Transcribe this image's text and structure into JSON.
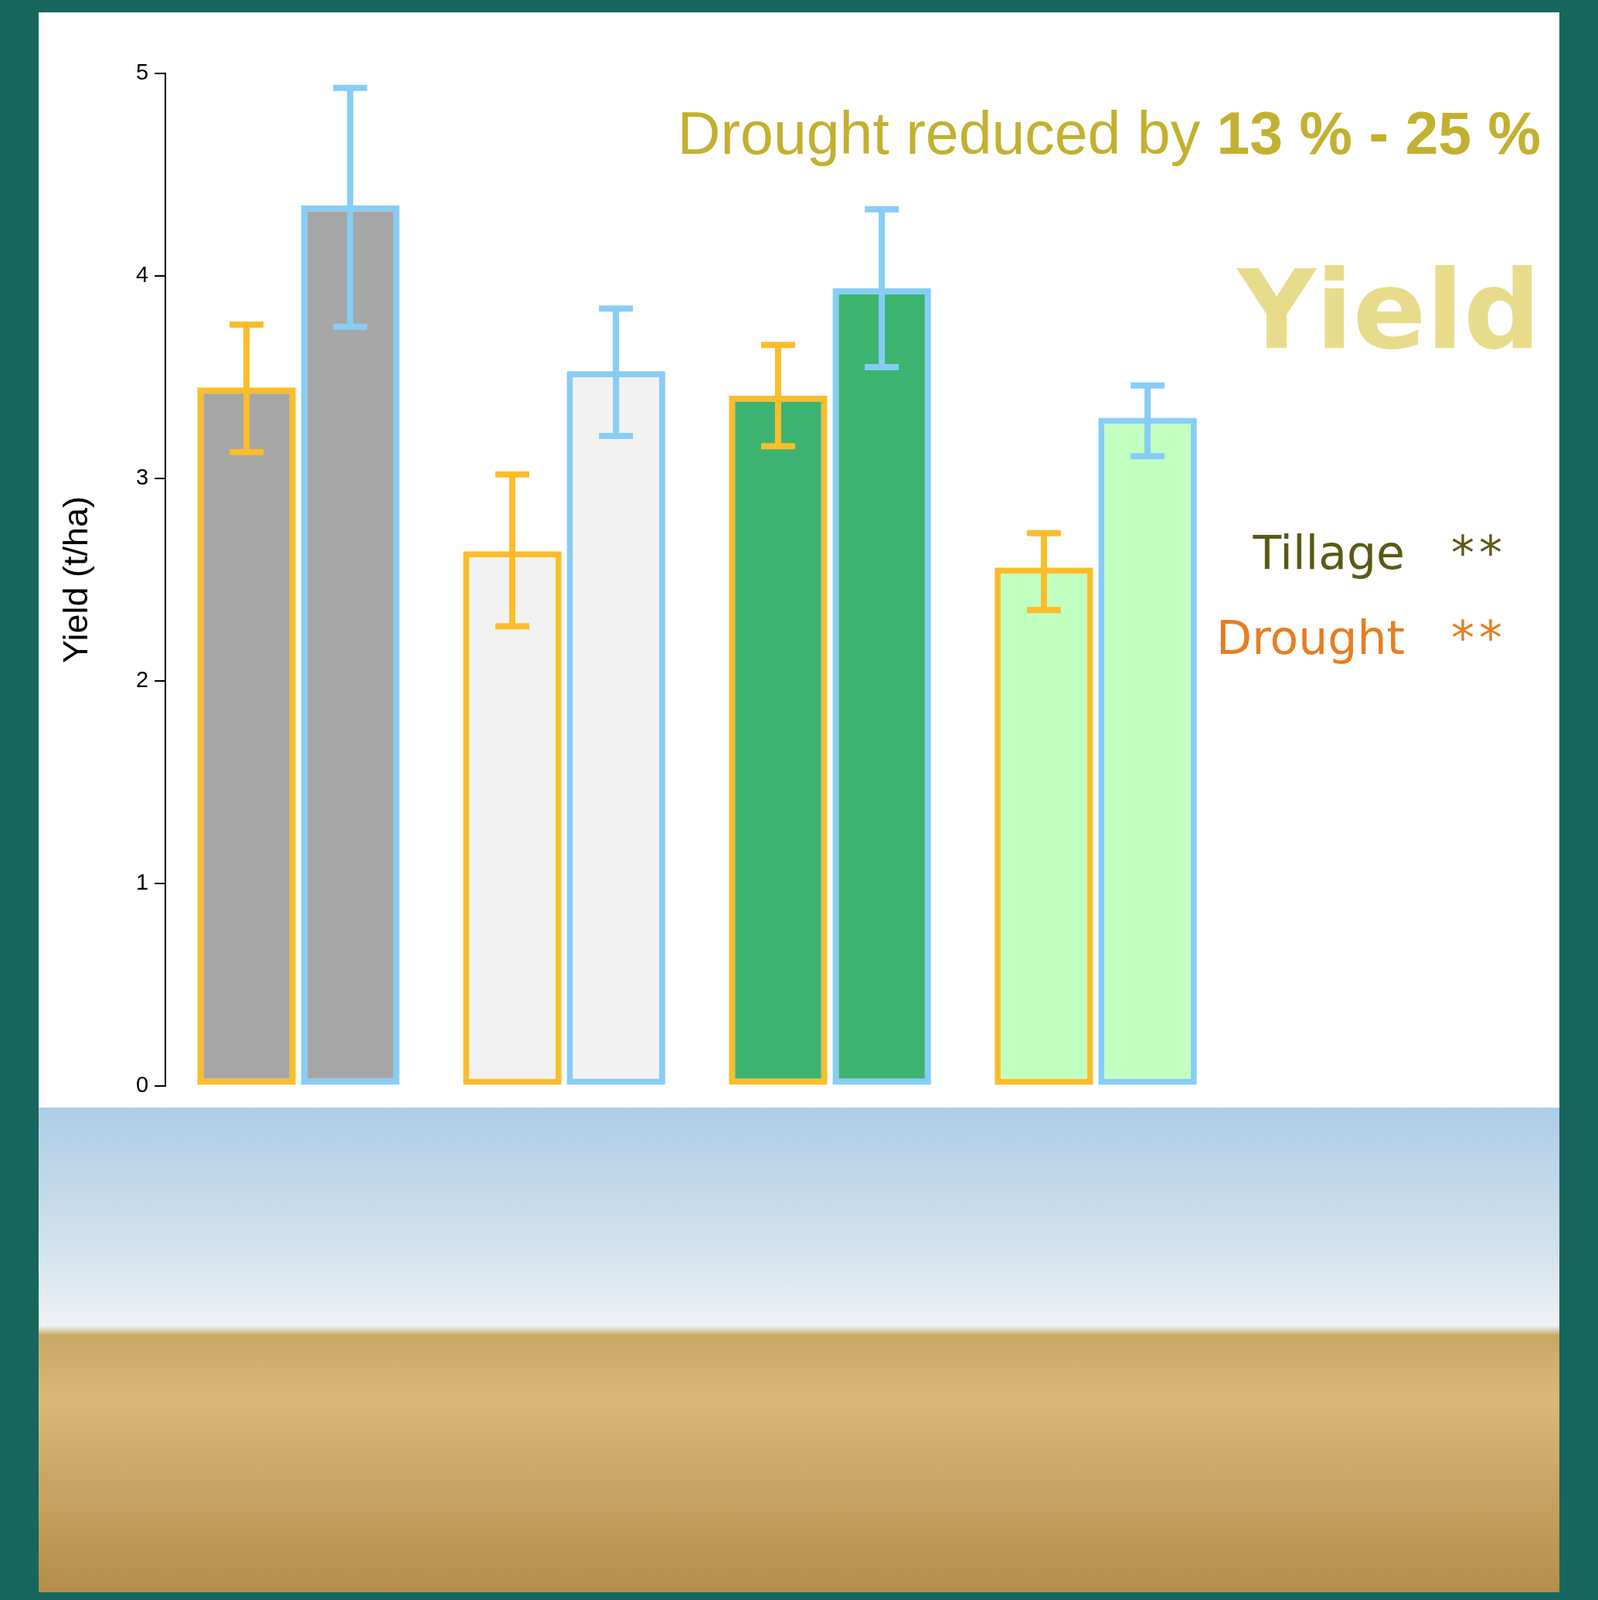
{
  "chart_data": {
    "type": "bar",
    "title": "Yield",
    "subtitle": "Drought reduced by 13 % - 25 %",
    "y_label": "Yield (t/ha)",
    "categories": [
      null,
      null,
      null,
      null
    ],
    "series": [
      {
        "color": "#fbbd2a",
        "colors": [
          "#a6a6a6",
          "#f2f2f2",
          "#3cb371",
          "#c1ffc1"
        ],
        "values": [
          3.45,
          2.64,
          3.41,
          2.56
        ],
        "error_low": [
          3.13,
          2.27,
          3.16,
          2.35
        ],
        "error_high": [
          3.76,
          3.02,
          3.66,
          2.73
        ]
      },
      {
        "color": "#87cdf5",
        "colors": [
          "#a6a6a6",
          "#f2f2f2",
          "#3cb371",
          "#c1ffc1"
        ],
        "values": [
          4.35,
          3.53,
          3.94,
          3.3
        ],
        "error_low": [
          3.75,
          3.21,
          3.55,
          3.11
        ],
        "error_high": [
          4.93,
          3.84,
          4.33,
          3.46
        ]
      }
    ],
    "significance": [
      {
        "label": "Tillage",
        "stars": "**",
        "color": "#5b5a14"
      },
      {
        "label": "Drought",
        "stars": "**",
        "color": "#e67e22"
      }
    ],
    "ylim": [
      0,
      5
    ],
    "yticks": [
      0,
      1,
      2,
      3,
      4,
      5
    ],
    "grid": false
  }
}
